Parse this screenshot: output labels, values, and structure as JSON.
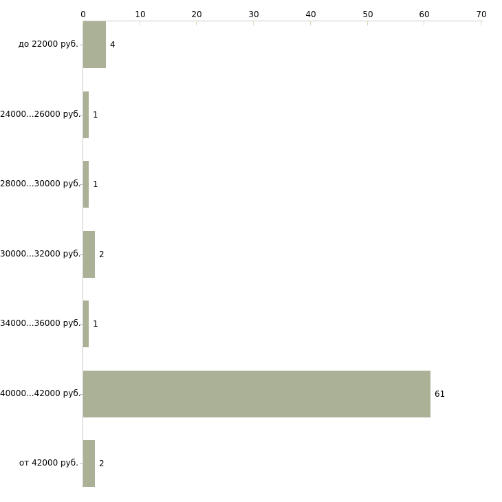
{
  "chart_data": {
    "type": "bar",
    "orientation": "horizontal",
    "title": "",
    "xlabel": "",
    "ylabel": "",
    "categories": [
      "до 22000 руб.",
      "24000...26000 руб.",
      "28000...30000 руб.",
      "30000...32000 руб.",
      "34000...36000 руб.",
      "40000...42000 руб.",
      "от 42000 руб."
    ],
    "values": [
      4,
      1,
      1,
      2,
      1,
      61,
      2
    ],
    "value_labels": [
      "4",
      "1",
      "1",
      "2",
      "1",
      "61",
      "2"
    ],
    "xlim": [
      0,
      70
    ],
    "x_ticks": [
      0,
      10,
      20,
      30,
      40,
      50,
      60,
      70
    ],
    "x_tick_labels": [
      "0",
      "10",
      "20",
      "30",
      "40",
      "50",
      "60",
      "70"
    ],
    "axis_position": "top",
    "grid": false,
    "legend": false,
    "colors": {
      "bar_fill": "#abb197",
      "axis_line": "#c9c9c9",
      "x_tick_mark": "#d9dcbb",
      "y_tick_mark": "#b3b3b3",
      "text": "#000000",
      "background": "#ffffff"
    }
  }
}
